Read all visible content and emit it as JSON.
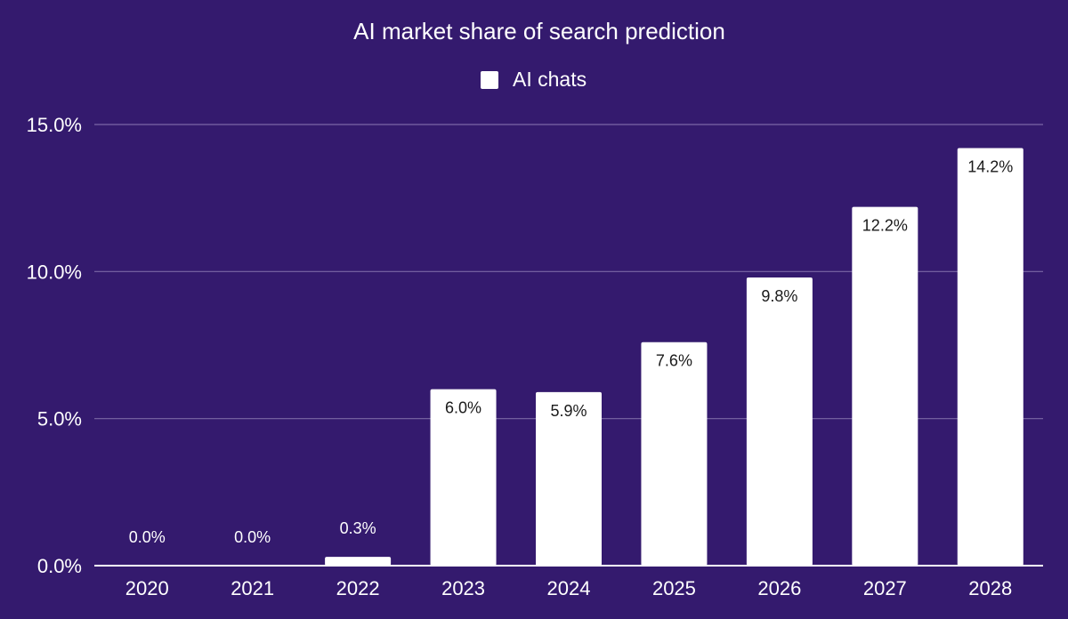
{
  "chart_data": {
    "type": "bar",
    "title": "AI market share of search prediction",
    "xlabel": "",
    "ylabel": "",
    "categories": [
      "2020",
      "2021",
      "2022",
      "2023",
      "2024",
      "2025",
      "2026",
      "2027",
      "2028"
    ],
    "series": [
      {
        "name": "AI chats",
        "values": [
          0.0,
          0.0,
          0.3,
          6.0,
          5.9,
          7.6,
          9.8,
          12.2,
          14.2
        ],
        "data_labels": [
          "0.0%",
          "0.0%",
          "0.3%",
          "6.0%",
          "5.9%",
          "7.6%",
          "9.8%",
          "12.2%",
          "14.2%"
        ]
      }
    ],
    "ylim": [
      0,
      15
    ],
    "yticks": [
      0,
      5,
      10,
      15
    ],
    "ytick_labels": [
      "0.0%",
      "5.0%",
      "10.0%",
      "15.0%"
    ],
    "grid": true,
    "legend_position": "top-center",
    "colors": {
      "background": "#341a6e",
      "bar": "#ffffff",
      "text": "#ffffff",
      "inner_label": "#1a1a1a",
      "gridline": "#7b68a6",
      "axis": "#ffffff"
    }
  }
}
